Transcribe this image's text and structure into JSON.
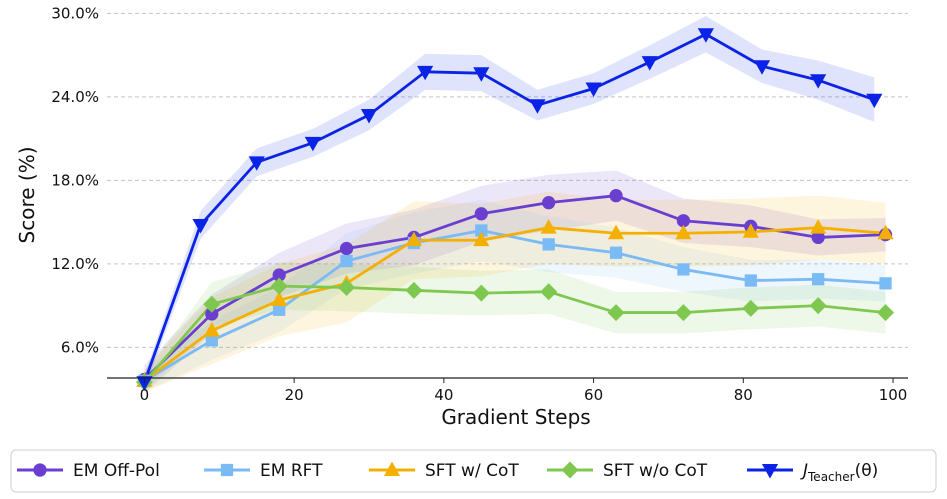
{
  "chart_data": {
    "type": "line",
    "xlabel": "Gradient Steps",
    "ylabel": "Score (%)",
    "xlim": [
      -5,
      102
    ],
    "ylim": [
      3.8,
      30.6
    ],
    "x_ticks": [
      0,
      20,
      40,
      60,
      80,
      100
    ],
    "y_ticks": [
      6.0,
      12.0,
      18.0,
      24.0,
      30.0
    ],
    "y_tick_labels": [
      "6.0%",
      "12.0%",
      "18.0%",
      "24.0%",
      "30.0%"
    ],
    "grid": "horizontal dashed",
    "legend_position": "bottom",
    "series": [
      {
        "name": "EM Off-Pol",
        "color": "#6a3fd0",
        "marker": "circle",
        "x": [
          0,
          9,
          18,
          27,
          36,
          45,
          54,
          63,
          72,
          81,
          90,
          99
        ],
        "y": [
          3.7,
          8.4,
          11.2,
          13.1,
          13.9,
          15.6,
          16.4,
          16.9,
          15.1,
          14.7,
          13.9,
          14.1
        ],
        "band": [
          1.0,
          1.4,
          1.6,
          1.8,
          2.0,
          2.0,
          2.0,
          1.8,
          1.6,
          1.5,
          1.3,
          1.2
        ]
      },
      {
        "name": "EM RFT",
        "color": "#7abaf5",
        "marker": "square",
        "x": [
          0,
          9,
          18,
          27,
          36,
          45,
          54,
          63,
          72,
          81,
          90,
          99
        ],
        "y": [
          3.6,
          6.5,
          8.7,
          12.2,
          13.5,
          14.4,
          13.4,
          12.8,
          11.6,
          10.8,
          10.9,
          10.6
        ],
        "band": [
          0.8,
          1.4,
          1.6,
          2.0,
          2.2,
          2.2,
          2.0,
          1.8,
          1.6,
          1.5,
          1.4,
          1.3
        ]
      },
      {
        "name": "SFT w/ CoT",
        "color": "#f4b000",
        "marker": "triangle-up",
        "x": [
          0,
          9,
          18,
          27,
          36,
          45,
          54,
          63,
          72,
          81,
          90,
          99
        ],
        "y": [
          3.6,
          7.2,
          9.4,
          10.6,
          13.7,
          13.7,
          14.6,
          14.2,
          14.2,
          14.3,
          14.6,
          14.2
        ],
        "band": [
          0.8,
          2.4,
          2.6,
          2.8,
          2.8,
          2.6,
          2.6,
          2.4,
          2.4,
          2.4,
          2.3,
          2.2
        ]
      },
      {
        "name": "SFT w/o CoT",
        "color": "#7ec850",
        "marker": "diamond",
        "x": [
          0,
          9,
          18,
          27,
          36,
          45,
          54,
          63,
          72,
          81,
          90,
          99
        ],
        "y": [
          3.5,
          9.1,
          10.4,
          10.3,
          10.1,
          9.9,
          10.0,
          8.5,
          8.5,
          8.8,
          9.0,
          8.5
        ],
        "band": [
          0.6,
          1.6,
          1.7,
          1.7,
          1.7,
          1.6,
          1.6,
          1.5,
          1.5,
          1.5,
          1.5,
          1.5
        ]
      },
      {
        "name": "J_Teacher(θ)",
        "color": "#0a23e6",
        "marker": "triangle-down",
        "x": [
          0,
          7.5,
          15,
          22.5,
          30,
          37.5,
          45,
          52.5,
          60,
          67.5,
          75,
          82.5,
          90,
          97.5
        ],
        "y": [
          3.5,
          14.8,
          19.3,
          20.7,
          22.7,
          25.8,
          25.7,
          23.4,
          24.6,
          26.5,
          28.5,
          26.2,
          25.2,
          23.8
        ],
        "band": [
          0.5,
          1.0,
          1.0,
          1.0,
          1.1,
          1.3,
          1.3,
          1.1,
          1.1,
          1.2,
          1.3,
          1.2,
          1.4,
          1.6
        ]
      }
    ]
  },
  "legend": {
    "items": [
      {
        "label": "EM Off-Pol",
        "color": "#6a3fd0",
        "marker": "circle"
      },
      {
        "label": "EM RFT",
        "color": "#7abaf5",
        "marker": "square"
      },
      {
        "label": "SFT w/ CoT",
        "color": "#f4b000",
        "marker": "triangle-up"
      },
      {
        "label": "SFT w/o CoT",
        "color": "#7ec850",
        "marker": "diamond"
      },
      {
        "label": "J_Teacher(θ)",
        "label_main": "J",
        "label_sub": "Teacher",
        "label_tail": "(θ)",
        "color": "#0a23e6",
        "marker": "triangle-down"
      }
    ]
  }
}
